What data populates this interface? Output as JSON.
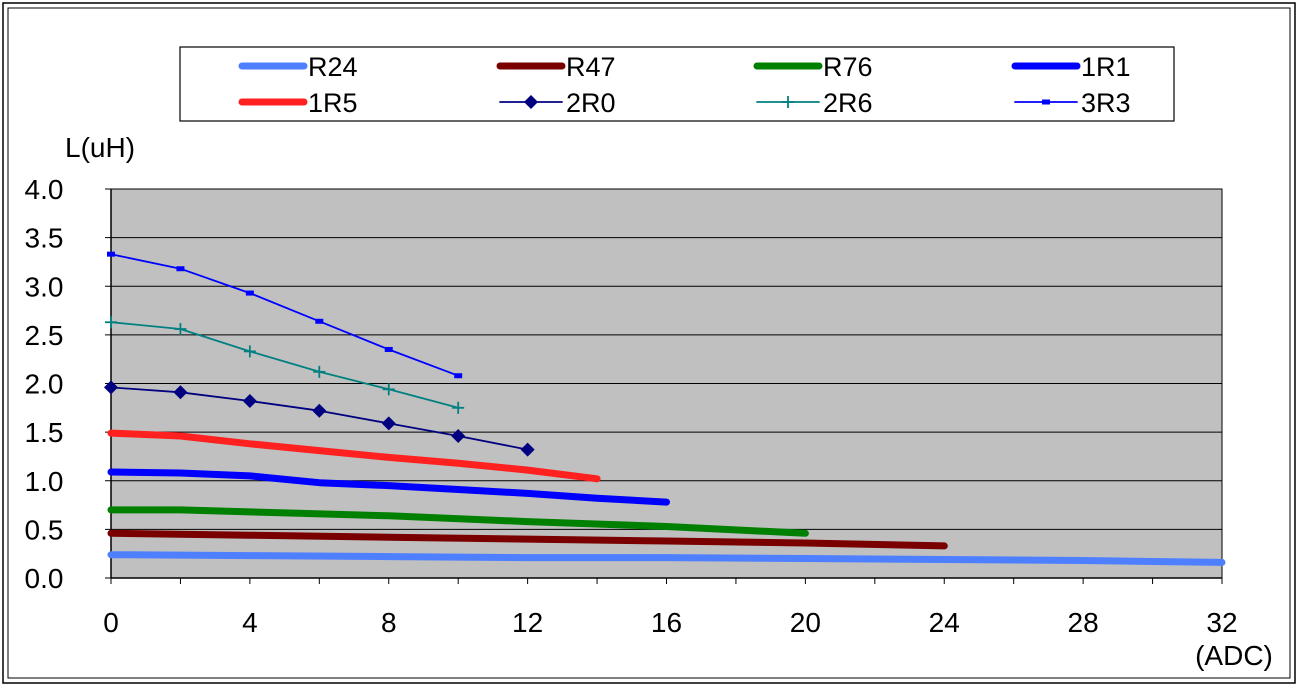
{
  "chart_data": {
    "type": "line",
    "ylabel": "L(uH)",
    "xlabel": "(ADC)",
    "xlim": [
      0,
      32
    ],
    "ylim": [
      0.0,
      4.0
    ],
    "x_ticks": [
      "0",
      "4",
      "8",
      "12",
      "16",
      "20",
      "24",
      "28",
      "32"
    ],
    "x_tick_values": [
      0,
      4,
      8,
      12,
      16,
      20,
      24,
      28,
      32
    ],
    "y_ticks": [
      "0.0",
      "0.5",
      "1.0",
      "1.5",
      "2.0",
      "2.5",
      "3.0",
      "3.5",
      "4.0"
    ],
    "y_tick_values": [
      0.0,
      0.5,
      1.0,
      1.5,
      2.0,
      2.5,
      3.0,
      3.5,
      4.0
    ],
    "grid": "horizontal",
    "plot_background": "#c0c0c0",
    "legend_position": "top",
    "series": [
      {
        "name": "R24",
        "color": "#4d7fff",
        "style": "thick",
        "marker": "none",
        "x": [
          0,
          4,
          8,
          12,
          16,
          20,
          24,
          28,
          32
        ],
        "y": [
          0.24,
          0.23,
          0.22,
          0.21,
          0.21,
          0.2,
          0.19,
          0.18,
          0.16
        ]
      },
      {
        "name": "R47",
        "color": "#7a0000",
        "style": "thick",
        "marker": "none",
        "x": [
          0,
          4,
          8,
          12,
          16,
          20,
          24
        ],
        "y": [
          0.46,
          0.44,
          0.42,
          0.4,
          0.38,
          0.36,
          0.33
        ]
      },
      {
        "name": "R76",
        "color": "#008000",
        "style": "thick",
        "marker": "none",
        "x": [
          0,
          2,
          4,
          8,
          12,
          16,
          20
        ],
        "y": [
          0.7,
          0.7,
          0.68,
          0.64,
          0.58,
          0.53,
          0.46
        ]
      },
      {
        "name": "1R1",
        "color": "#0000ff",
        "style": "thick",
        "marker": "none",
        "x": [
          0,
          2,
          4,
          6,
          8,
          10,
          12,
          14,
          16
        ],
        "y": [
          1.09,
          1.08,
          1.05,
          0.98,
          0.95,
          0.91,
          0.87,
          0.82,
          0.78
        ]
      },
      {
        "name": "1R5",
        "color": "#ff2020",
        "style": "thick",
        "marker": "none",
        "x": [
          0,
          2,
          4,
          6,
          8,
          10,
          12,
          14
        ],
        "y": [
          1.49,
          1.46,
          1.38,
          1.31,
          1.24,
          1.18,
          1.11,
          1.02
        ]
      },
      {
        "name": "2R0",
        "color": "#000080",
        "style": "thin",
        "marker": "diamond",
        "x": [
          0,
          2,
          4,
          6,
          8,
          10,
          12
        ],
        "y": [
          1.96,
          1.91,
          1.82,
          1.72,
          1.59,
          1.46,
          1.32
        ]
      },
      {
        "name": "2R6",
        "color": "#008080",
        "style": "thin",
        "marker": "plus",
        "x": [
          0,
          2,
          4,
          6,
          8,
          10
        ],
        "y": [
          2.63,
          2.56,
          2.33,
          2.12,
          1.94,
          1.75
        ]
      },
      {
        "name": "3R3",
        "color": "#0000ff",
        "style": "thin",
        "marker": "dash",
        "x": [
          0,
          2,
          4,
          6,
          8,
          10
        ],
        "y": [
          3.33,
          3.18,
          2.93,
          2.64,
          2.35,
          2.08
        ]
      }
    ]
  }
}
